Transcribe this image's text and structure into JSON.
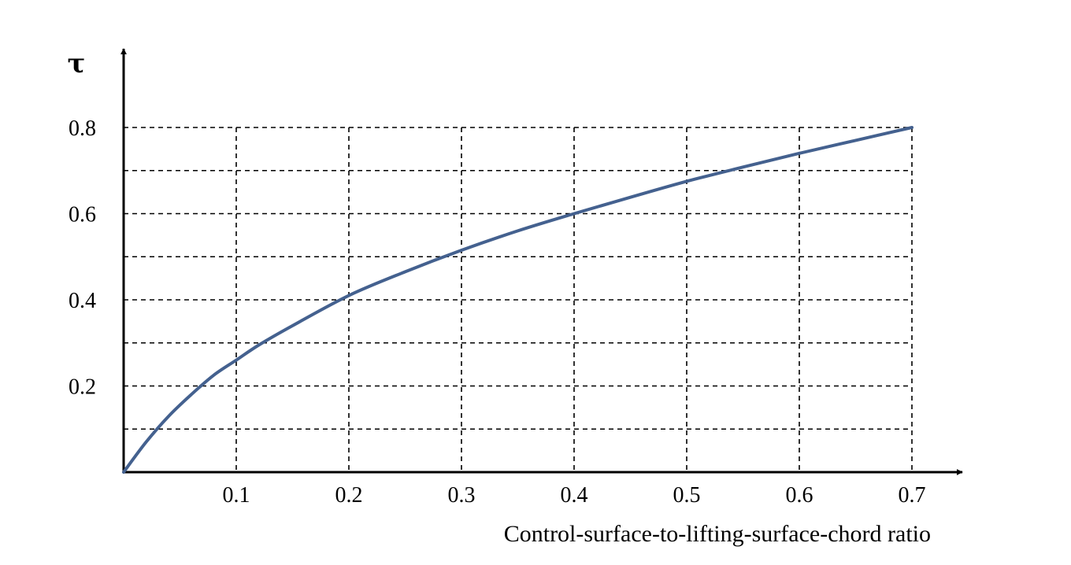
{
  "chart_data": {
    "type": "line",
    "title": "",
    "xlabel": "Control-surface-to-lifting-surface-chord ratio",
    "ylabel": "τ",
    "xlim": [
      0,
      0.7
    ],
    "ylim": [
      0,
      0.8
    ],
    "x_ticks": [
      "0.1",
      "0.2",
      "0.3",
      "0.4",
      "0.5",
      "0.6",
      "0.7"
    ],
    "y_ticks": [
      "0.2",
      "0.4",
      "0.6",
      "0.8"
    ],
    "x_gridlines": [
      0.1,
      0.2,
      0.3,
      0.4,
      0.5,
      0.6,
      0.7
    ],
    "y_gridlines": [
      0.1,
      0.2,
      0.3,
      0.4,
      0.5,
      0.6,
      0.7,
      0.8
    ],
    "grid": true,
    "grid_style": "dashed",
    "line_color": "#44618f",
    "series": [
      {
        "x": [
          0.0,
          0.02,
          0.04,
          0.06,
          0.08,
          0.1,
          0.12,
          0.15,
          0.2,
          0.25,
          0.3,
          0.35,
          0.4,
          0.45,
          0.5,
          0.55,
          0.6,
          0.65,
          0.7
        ],
        "values": [
          0.0,
          0.07,
          0.13,
          0.18,
          0.225,
          0.26,
          0.295,
          0.34,
          0.41,
          0.465,
          0.515,
          0.56,
          0.6,
          0.638,
          0.675,
          0.708,
          0.74,
          0.77,
          0.8
        ]
      }
    ]
  }
}
